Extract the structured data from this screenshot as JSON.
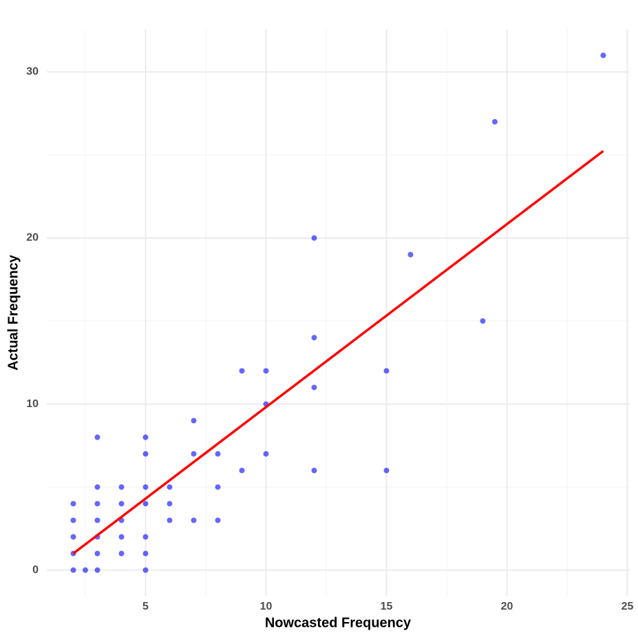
{
  "chart_data": {
    "type": "scatter",
    "x_label": "Nowcasted Frequency",
    "y_label": "Actual Frequency",
    "points": {
      "color": "#0000ff",
      "x": [
        2,
        2,
        2,
        2,
        2,
        2.5,
        3,
        3,
        3,
        3,
        3,
        3,
        3,
        4,
        4,
        4,
        4,
        4,
        5,
        5,
        5,
        5,
        5,
        5,
        5,
        6,
        6,
        6,
        7,
        7,
        7,
        8,
        8,
        8,
        9,
        9,
        10,
        10,
        10,
        12,
        12,
        12,
        12,
        15,
        15,
        16,
        19,
        19.5,
        24
      ],
      "values": [
        0,
        1,
        2,
        3,
        4,
        0,
        0,
        1,
        2,
        3,
        4,
        5,
        8,
        1,
        2,
        3,
        4,
        5,
        0,
        1,
        2,
        4,
        5,
        7,
        8,
        3,
        4,
        5,
        3,
        7,
        9,
        3,
        5,
        7,
        6,
        12,
        7,
        10,
        12,
        6,
        11,
        14,
        20,
        6,
        12,
        19,
        15,
        27,
        31
      ]
    },
    "fit_line": {
      "color": "#ff0000",
      "x": [
        2,
        24
      ],
      "values": [
        1.0,
        25.24
      ]
    },
    "xlim": [
      0.9,
      25.1
    ],
    "ylim": [
      -1.55,
      32.55
    ],
    "xticks": [
      5,
      10,
      15,
      20,
      25
    ],
    "yticks": [
      0,
      10,
      20,
      30
    ],
    "xminorticks": [
      2.5,
      7.5,
      12.5,
      17.5,
      22.5
    ],
    "yminorticks": [
      5,
      15,
      25
    ],
    "grid": true
  }
}
